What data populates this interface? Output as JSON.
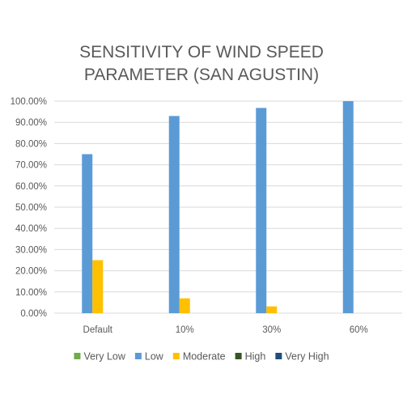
{
  "chart_data": {
    "type": "bar",
    "title_lines": [
      "SENSITIVITY OF WIND SPEED",
      "PARAMETER (SAN AGUSTIN)"
    ],
    "categories": [
      "Default",
      "10%",
      "30%",
      "60%"
    ],
    "y_ticks": [
      "0.00%",
      "10.00%",
      "20.00%",
      "30.00%",
      "40.00%",
      "50.00%",
      "60.00%",
      "70.00%",
      "80.00%",
      "90.00%",
      "100.00%"
    ],
    "ylim": [
      0,
      100
    ],
    "grid": true,
    "legend_position": "bottom",
    "series": [
      {
        "name": "Very Low",
        "color": "#70ad47",
        "values": [
          0,
          0,
          0,
          0
        ]
      },
      {
        "name": "Low",
        "color": "#5b9bd5",
        "values": [
          75,
          93,
          96.8,
          100
        ]
      },
      {
        "name": "Moderate",
        "color": "#ffc000",
        "values": [
          25,
          7,
          3.2,
          0
        ]
      },
      {
        "name": "High",
        "color": "#375623",
        "values": [
          0,
          0,
          0,
          0
        ]
      },
      {
        "name": "Very High",
        "color": "#1f4e79",
        "values": [
          0,
          0,
          0,
          0
        ]
      }
    ]
  }
}
